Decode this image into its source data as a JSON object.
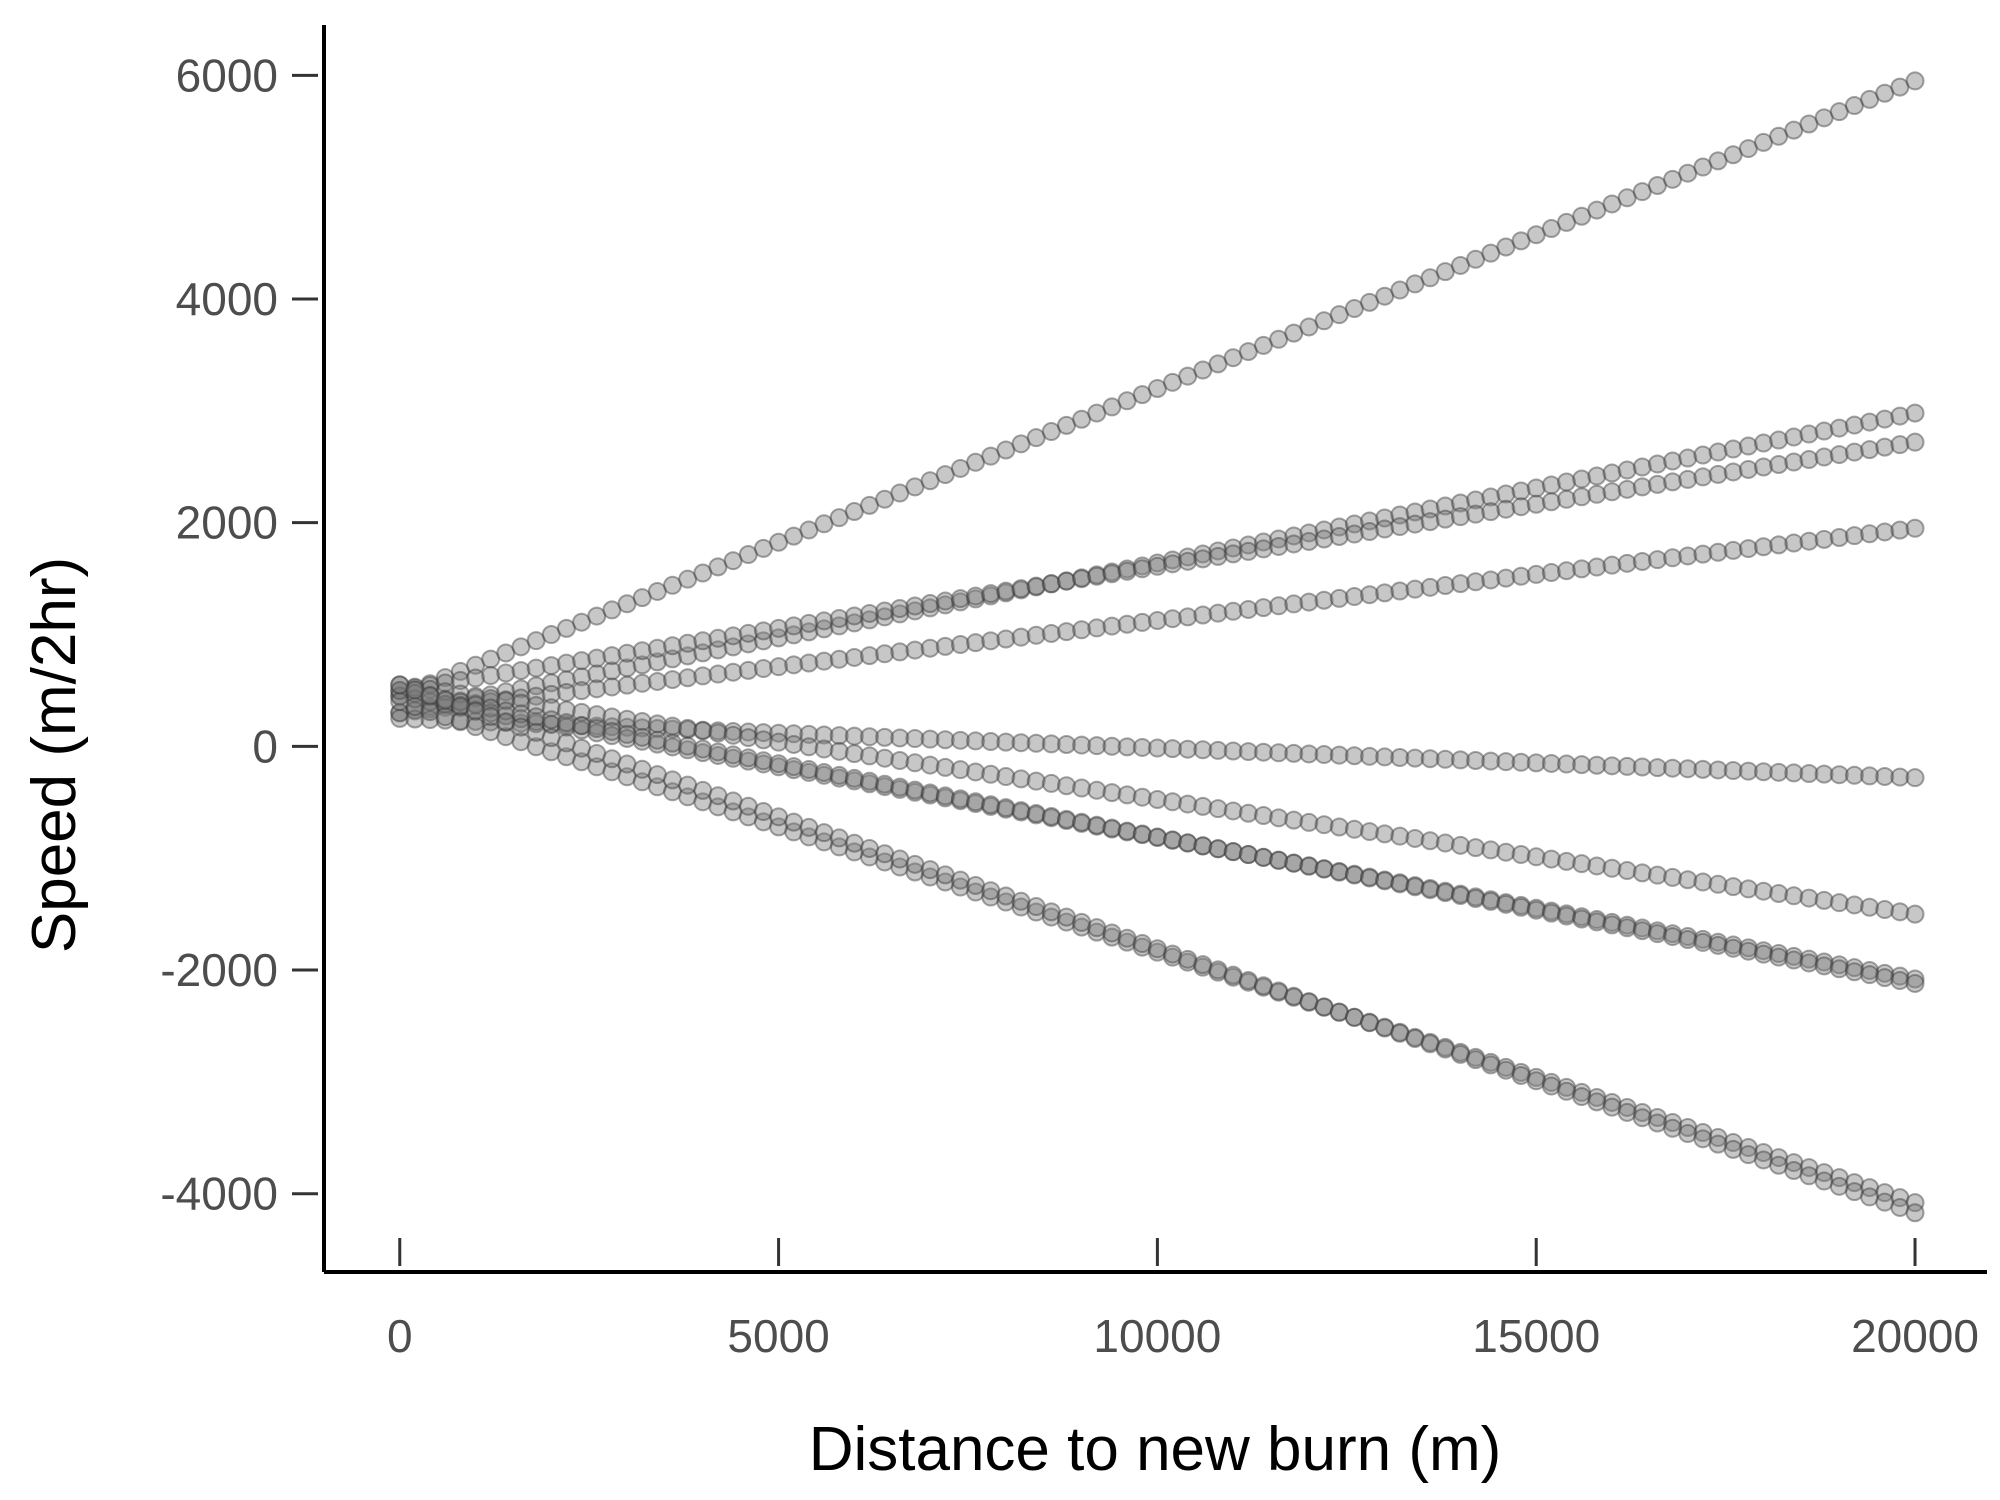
{
  "chart_data": {
    "type": "scatter",
    "title": "",
    "xlabel": "Distance to new burn (m)",
    "ylabel": "Speed (m/2hr)",
    "xlim": [
      -1000,
      20950
    ],
    "ylim": [
      -4700,
      6450
    ],
    "x_ticks": [
      0,
      5000,
      10000,
      15000,
      20000
    ],
    "x_tick_labels": [
      "0",
      "5000",
      "10000",
      "15000",
      "20000"
    ],
    "y_ticks": [
      -4000,
      -2000,
      0,
      2000,
      4000,
      6000
    ],
    "y_tick_labels": [
      "-4000",
      "-2000",
      "0",
      "2000",
      "4000",
      "6000"
    ],
    "grid": false,
    "legend": "none",
    "point_color": "#7a7a7a",
    "point_count_per_series": 101,
    "x_start": 0,
    "x_end": 20000,
    "series": [
      {
        "y_start": 450,
        "y_end": 5950
      },
      {
        "y_start": 300,
        "y_end": 2980
      },
      {
        "y_start": 500,
        "y_end": 2720
      },
      {
        "y_start": 300,
        "y_end": 1950
      },
      {
        "y_start": 250,
        "y_end": -280
      },
      {
        "y_start": 550,
        "y_end": -1500
      },
      {
        "y_start": 450,
        "y_end": -2080
      },
      {
        "y_start": 500,
        "y_end": -2120
      },
      {
        "y_start": 400,
        "y_end": -4080
      },
      {
        "y_start": 550,
        "y_end": -4170
      }
    ]
  }
}
